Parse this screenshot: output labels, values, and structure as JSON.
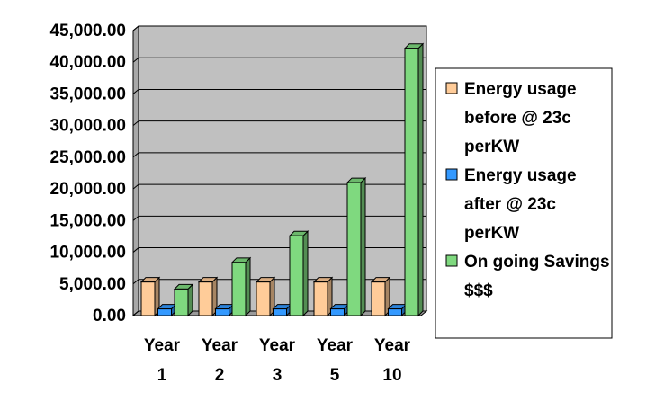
{
  "chart_data": {
    "type": "bar",
    "categories": [
      [
        "Year",
        "1"
      ],
      [
        "Year",
        "2"
      ],
      [
        "Year",
        "3"
      ],
      [
        "Year",
        "5"
      ],
      [
        "Year",
        "10"
      ]
    ],
    "series": [
      {
        "name": "Energy usage before @ 23c perKW",
        "name_lines": [
          "Energy usage",
          "before @ 23c",
          "perKW"
        ],
        "color": "#FFCC99",
        "values": [
          5300,
          5300,
          5300,
          5300,
          5300
        ]
      },
      {
        "name": "Energy usage after @ 23c perKW",
        "name_lines": [
          "Energy usage",
          "after @ 23c",
          "perKW"
        ],
        "color": "#3399FF",
        "values": [
          1050,
          1050,
          1050,
          1050,
          1050
        ]
      },
      {
        "name": "On going Savings $$$",
        "name_lines": [
          "On going Savings",
          "$$$"
        ],
        "color": "#7FD97F",
        "values": [
          4200,
          8400,
          12600,
          21000,
          42200
        ]
      }
    ],
    "y_ticks": [
      "0.00",
      "5,000.00",
      "10,000.00",
      "15,000.00",
      "20,000.00",
      "25,000.00",
      "30,000.00",
      "35,000.00",
      "40,000.00",
      "45,000.00"
    ],
    "ylim": [
      0,
      45000
    ],
    "grid": true,
    "legend_position": "right",
    "plot_background": "#C0C0C0",
    "three_d": true
  }
}
